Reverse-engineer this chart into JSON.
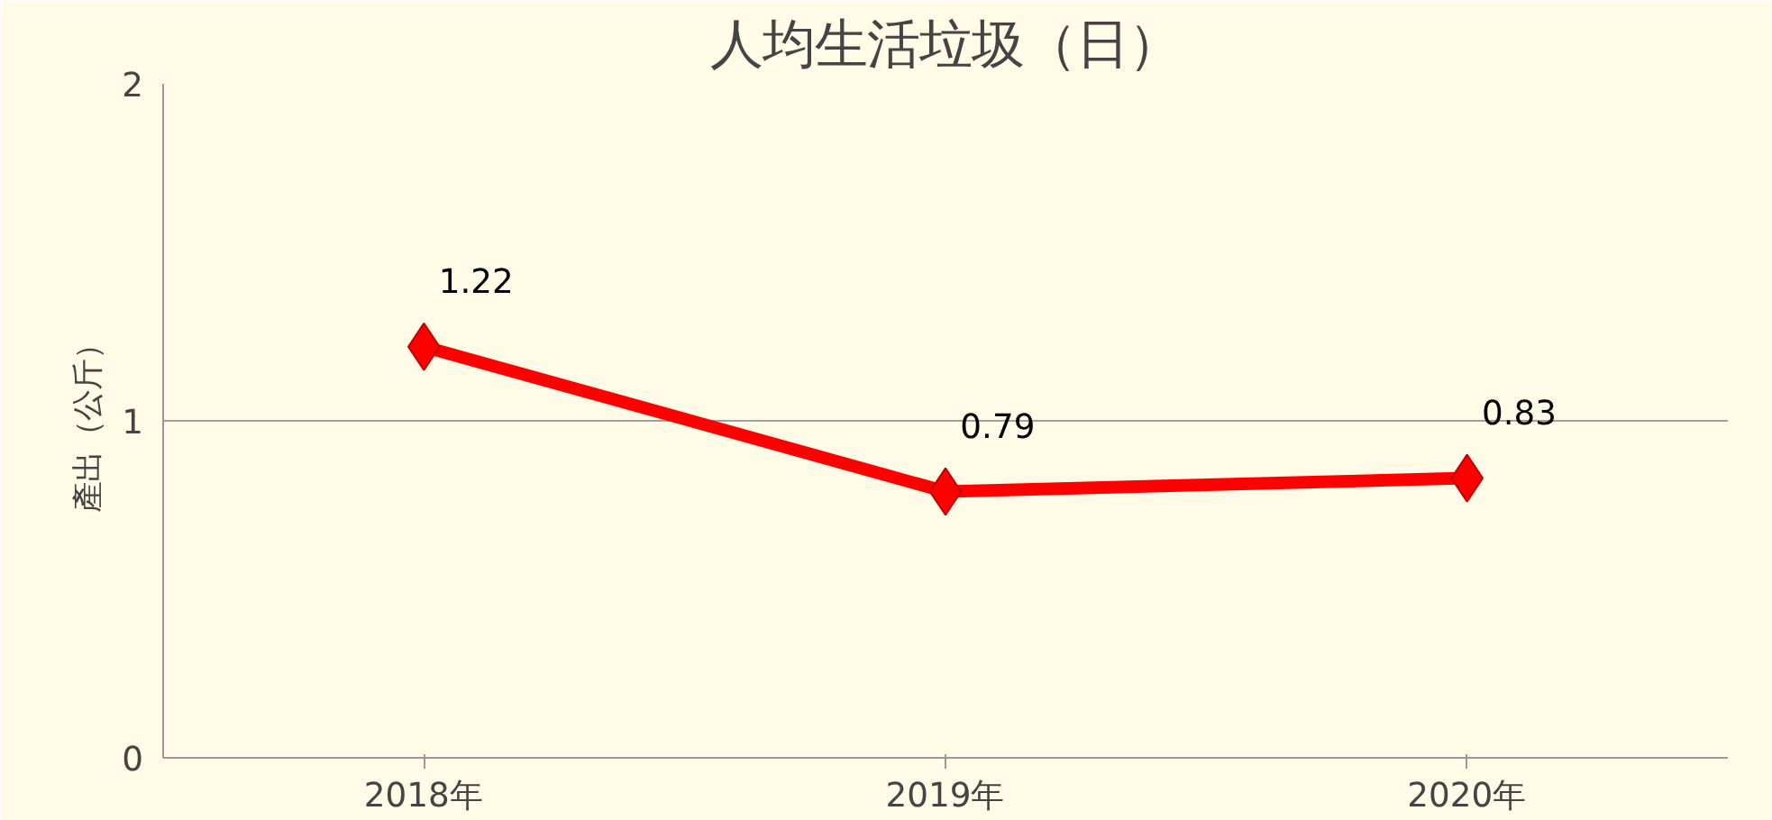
{
  "chart_data": {
    "type": "line",
    "title": "人均生活垃圾（日）",
    "ylabel": "產出（公斤）",
    "categories": [
      "2018年",
      "2019年",
      "2020年"
    ],
    "series": [
      {
        "color": "#ff0000",
        "values": [
          1.22,
          0.79,
          0.83
        ]
      }
    ],
    "ylim": [
      0,
      2
    ],
    "yticks": [
      0,
      1,
      2
    ],
    "grid": "y",
    "marker": "diamond",
    "line_style": "solid",
    "data_labels": true
  }
}
